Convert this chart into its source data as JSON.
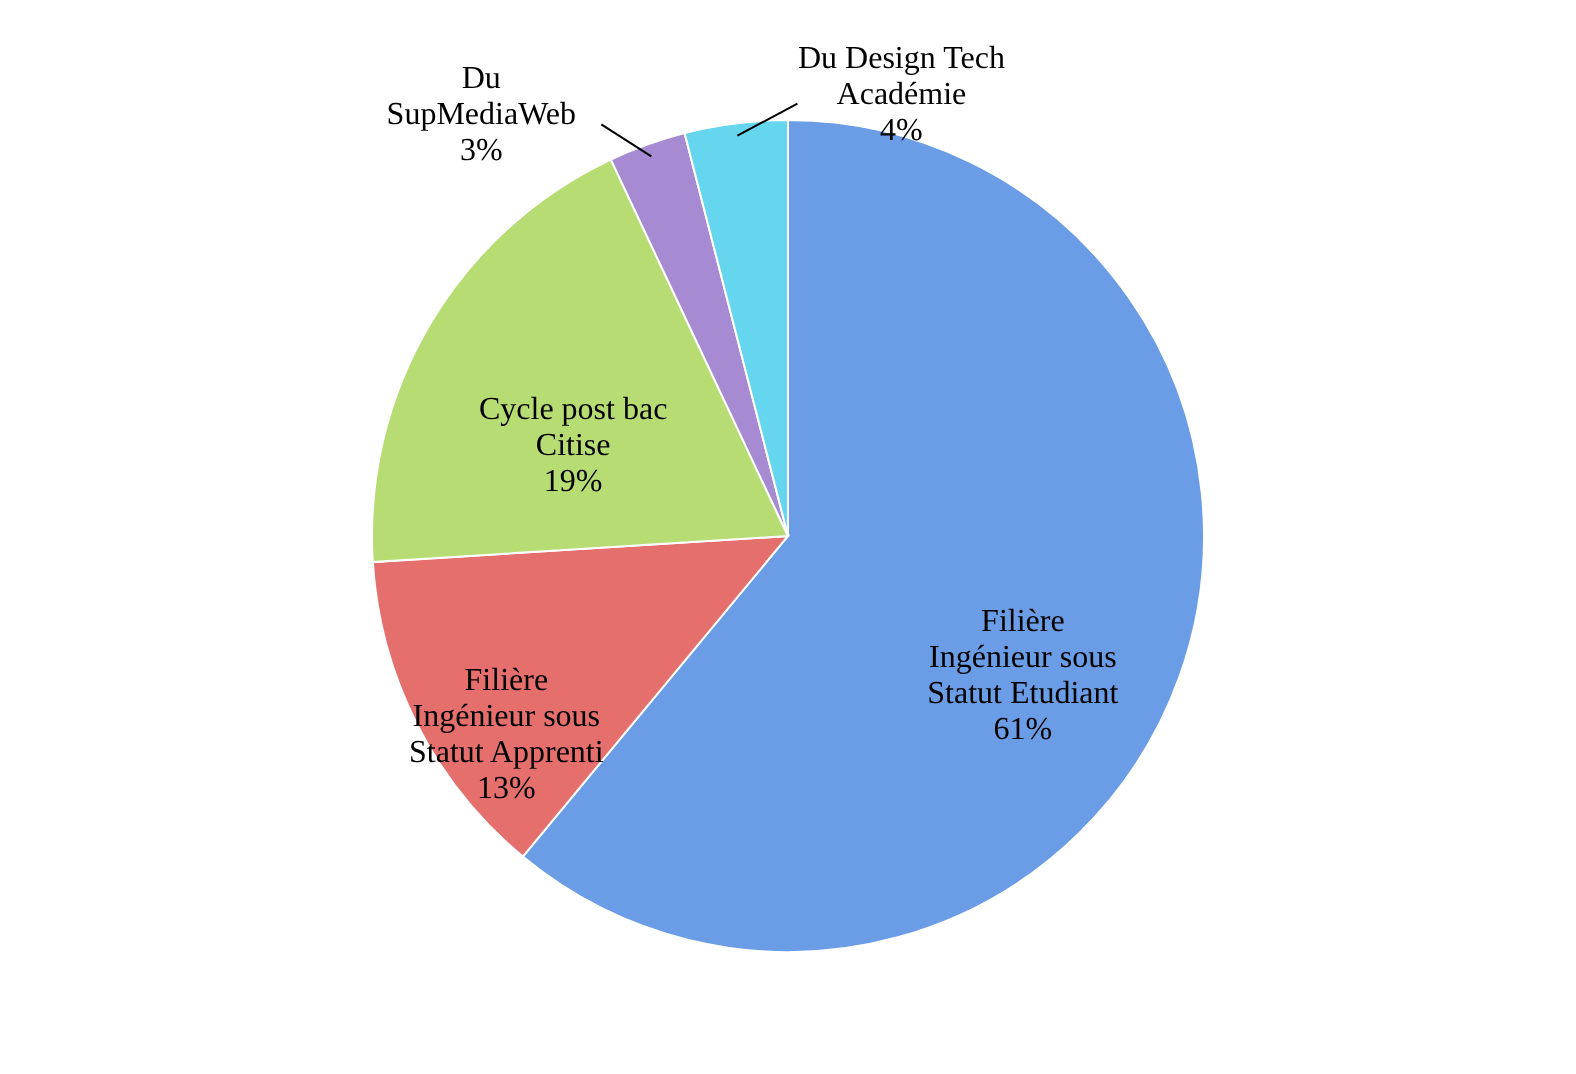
{
  "chart_data": {
    "type": "pie",
    "categories": [
      "Filière\nIngénieur sous\nStatut Etudiant",
      "Filière\nIngénieur sous\nStatut Apprenti",
      "Cycle post bac\nCitise",
      "Du\nSupMediaWeb",
      "Du Design Tech\nAcadémie"
    ],
    "values": [
      61,
      13,
      19,
      3,
      4
    ],
    "value_labels": [
      "61%",
      "13%",
      "19%",
      "3%",
      "4%"
    ],
    "colors": [
      "#6b9de6",
      "#e56f6c",
      "#b7dc74",
      "#a68ad2",
      "#66d6ee"
    ]
  }
}
